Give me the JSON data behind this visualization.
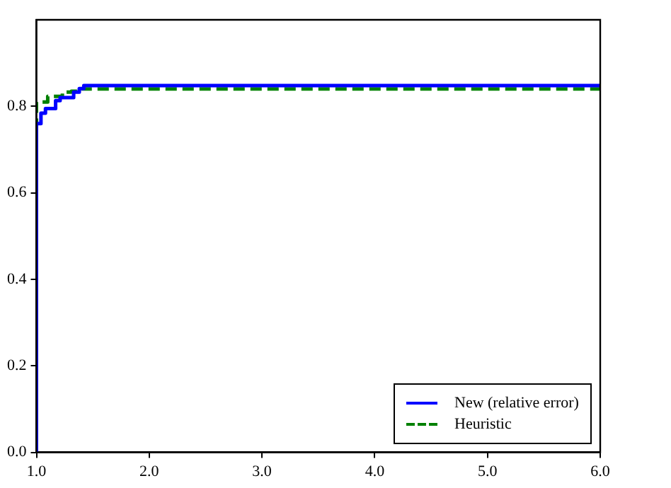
{
  "chart_data": {
    "type": "step",
    "xlim": [
      1,
      6
    ],
    "ylim": [
      0,
      1
    ],
    "xticks": [
      {
        "value": 1,
        "label": "1.0"
      },
      {
        "value": 2,
        "label": "2.0"
      },
      {
        "value": 3,
        "label": "3.0"
      },
      {
        "value": 4,
        "label": "4.0"
      },
      {
        "value": 5,
        "label": "5.0"
      },
      {
        "value": 6,
        "label": "6.0"
      }
    ],
    "yticks": [
      {
        "value": 0,
        "label": "0.0"
      },
      {
        "value": 0.2,
        "label": "0.2"
      },
      {
        "value": 0.4,
        "label": "0.4"
      },
      {
        "value": 0.6,
        "label": "0.6"
      },
      {
        "value": 0.8,
        "label": "0.8"
      }
    ],
    "grid": false,
    "legend": "bottom right",
    "marker": "none",
    "series": [
      {
        "name": "New (relative error)",
        "color": "#0000ff",
        "line_style": "solid",
        "x": [
          1.0,
          1.0,
          1.04,
          1.08,
          1.17,
          1.21,
          1.33,
          1.38,
          1.42,
          1.72,
          6.0
        ],
        "values": [
          0,
          0.687,
          0.76,
          0.784,
          0.795,
          0.813,
          0.82,
          0.833,
          0.841,
          0.848,
          0.848
        ]
      },
      {
        "name": "Heuristic",
        "color": "#008000",
        "line_style": "dashed",
        "x": [
          1.0,
          1.0,
          1.1,
          1.23,
          1.31,
          1.4,
          2.3,
          6.0
        ],
        "values": [
          0,
          0.8,
          0.81,
          0.823,
          0.833,
          0.835,
          0.84,
          0.84
        ]
      }
    ]
  }
}
